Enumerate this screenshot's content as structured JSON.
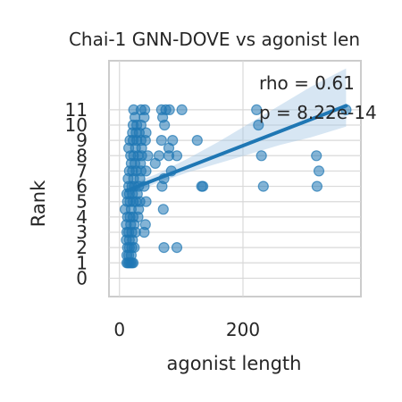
{
  "chart_data": {
    "type": "scatter",
    "title": "Chai-1 GNN-DOVE vs agonist len",
    "xlabel": "agonist length",
    "ylabel": "Rank",
    "xlim": [
      -17,
      391
    ],
    "ylim": [
      -1.2,
      14.2
    ],
    "x_ticks": [
      0,
      200
    ],
    "x_tick_labels": [
      "0",
      "200"
    ],
    "y_ticks": [
      0,
      1,
      2,
      3,
      4,
      5,
      6,
      7,
      8,
      9,
      10,
      11
    ],
    "y_tick_labels": [
      "0",
      "1",
      "2",
      "3",
      "4",
      "5",
      "6",
      "7",
      "8",
      "9",
      "10",
      "11"
    ],
    "grid": true,
    "annotations": [
      "rho = 0.61",
      "p = 8.22e-14"
    ],
    "point_color": "#1f77b4",
    "line_color": "#1f77b4",
    "band_color": "#a6c8e4",
    "points": [
      [
        12,
        1
      ],
      [
        14,
        1
      ],
      [
        16,
        1
      ],
      [
        18,
        1
      ],
      [
        20,
        1
      ],
      [
        22,
        1
      ],
      [
        12,
        1.5
      ],
      [
        15,
        1.5
      ],
      [
        19,
        1.5
      ],
      [
        13,
        2
      ],
      [
        16,
        2
      ],
      [
        20,
        2
      ],
      [
        24,
        2
      ],
      [
        72,
        2
      ],
      [
        93,
        2
      ],
      [
        11,
        2.5
      ],
      [
        16,
        2.5
      ],
      [
        21,
        2.5
      ],
      [
        12,
        3
      ],
      [
        15,
        3
      ],
      [
        20,
        3
      ],
      [
        26,
        3
      ],
      [
        40,
        3
      ],
      [
        11,
        3.5
      ],
      [
        18,
        3.5
      ],
      [
        24,
        3.5
      ],
      [
        42,
        3.5
      ],
      [
        13,
        4
      ],
      [
        17,
        4
      ],
      [
        22,
        4
      ],
      [
        30,
        4
      ],
      [
        9,
        4.5
      ],
      [
        19,
        4.5
      ],
      [
        31,
        4.5
      ],
      [
        71,
        4.5
      ],
      [
        13,
        5
      ],
      [
        17,
        5
      ],
      [
        22,
        5
      ],
      [
        27,
        5
      ],
      [
        33,
        5
      ],
      [
        43,
        5
      ],
      [
        12,
        5.5
      ],
      [
        16,
        5.5
      ],
      [
        21,
        5.5
      ],
      [
        29,
        5.5
      ],
      [
        15,
        6
      ],
      [
        20,
        6
      ],
      [
        24,
        6
      ],
      [
        31,
        6
      ],
      [
        40,
        6
      ],
      [
        69,
        6
      ],
      [
        133,
        6
      ],
      [
        135,
        6
      ],
      [
        233,
        6
      ],
      [
        320,
        6
      ],
      [
        14,
        6.5
      ],
      [
        23,
        6.5
      ],
      [
        33,
        6.5
      ],
      [
        72,
        6.5
      ],
      [
        16,
        7
      ],
      [
        21,
        7
      ],
      [
        27,
        7
      ],
      [
        35,
        7
      ],
      [
        43,
        7
      ],
      [
        84,
        7
      ],
      [
        323,
        7
      ],
      [
        19,
        7.5
      ],
      [
        25,
        7.5
      ],
      [
        34,
        7.5
      ],
      [
        58,
        7.5
      ],
      [
        18,
        8
      ],
      [
        23,
        8
      ],
      [
        30,
        8
      ],
      [
        36,
        8
      ],
      [
        46,
        8
      ],
      [
        64,
        8
      ],
      [
        80,
        8
      ],
      [
        93,
        8
      ],
      [
        230,
        8
      ],
      [
        319,
        8
      ],
      [
        15,
        8.5
      ],
      [
        26,
        8.5
      ],
      [
        36,
        8.5
      ],
      [
        80,
        8.5
      ],
      [
        17,
        9
      ],
      [
        22,
        9
      ],
      [
        28,
        9
      ],
      [
        35,
        9
      ],
      [
        42,
        9
      ],
      [
        68,
        9
      ],
      [
        86,
        9
      ],
      [
        126,
        9
      ],
      [
        21,
        9.5
      ],
      [
        27,
        9.5
      ],
      [
        32,
        9.5
      ],
      [
        43,
        9.5
      ],
      [
        22,
        10
      ],
      [
        28,
        10
      ],
      [
        35,
        10
      ],
      [
        73,
        10
      ],
      [
        225,
        10
      ],
      [
        25,
        10.5
      ],
      [
        40,
        10.5
      ],
      [
        70,
        10.5
      ],
      [
        23,
        11
      ],
      [
        35,
        11
      ],
      [
        41,
        11
      ],
      [
        68,
        11
      ],
      [
        75,
        11
      ],
      [
        81,
        11
      ],
      [
        101,
        11
      ],
      [
        222,
        11
      ],
      [
        367,
        11
      ]
    ],
    "trend_line": {
      "x0": 12,
      "y0": 5.72,
      "x1": 367,
      "y1": 11.26
    },
    "band": {
      "x": [
        12,
        60,
        110,
        160,
        210,
        260,
        310,
        367
      ],
      "upper": [
        6.05,
        6.8,
        7.8,
        8.9,
        10.1,
        11.3,
        12.5,
        13.7
      ],
      "lower": [
        5.4,
        6.2,
        6.9,
        7.5,
        8.1,
        8.7,
        9.2,
        9.9
      ]
    }
  }
}
